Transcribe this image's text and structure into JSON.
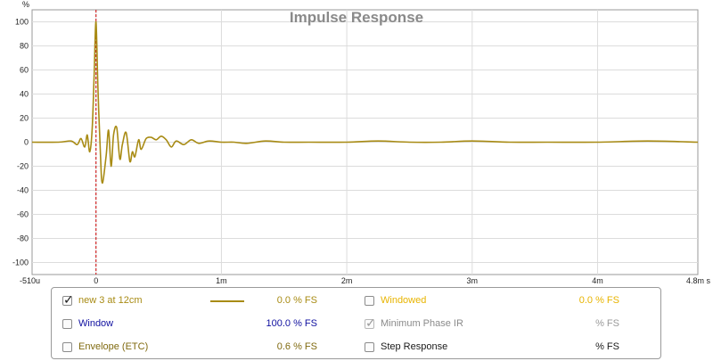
{
  "chart_data": {
    "type": "line",
    "title": "Impulse Response",
    "y_unit": "%",
    "ylim": [
      -110,
      110
    ],
    "y_ticks": [
      100,
      80,
      60,
      40,
      20,
      0,
      -20,
      -40,
      -60,
      -80,
      -100
    ],
    "y_tick_labels": [
      "100",
      "80",
      "60",
      "40",
      "20",
      "0",
      "-20",
      "-40",
      "-60",
      "-80",
      "-100"
    ],
    "x_range_ms": [
      -0.51,
      4.8
    ],
    "x_ticks_ms": [
      -0.51,
      0,
      1,
      2,
      3,
      4,
      4.8
    ],
    "x_tick_labels": [
      "-510u",
      "0",
      "1m",
      "2m",
      "3m",
      "4m",
      "4.8m s"
    ],
    "grid": true,
    "marker_x_ms": 0,
    "marker_color": "#cc0000",
    "series": [
      {
        "name": "new 3 at 12cm",
        "color": "#a88b14",
        "x_ms": [
          -0.51,
          -0.3,
          -0.2,
          -0.15,
          -0.12,
          -0.09,
          -0.07,
          -0.05,
          -0.03,
          -0.015,
          0.0,
          0.015,
          0.035,
          0.05,
          0.08,
          0.1,
          0.12,
          0.14,
          0.165,
          0.19,
          0.21,
          0.24,
          0.27,
          0.29,
          0.31,
          0.34,
          0.36,
          0.4,
          0.44,
          0.48,
          0.52,
          0.56,
          0.6,
          0.64,
          0.7,
          0.76,
          0.82,
          0.9,
          1.0,
          1.1,
          1.2,
          1.35,
          1.5,
          1.7,
          2.0,
          2.25,
          2.5,
          2.75,
          3.0,
          3.3,
          3.6,
          4.0,
          4.4,
          4.8
        ],
        "y": [
          0,
          0,
          1,
          -2,
          3,
          -4,
          6,
          -8,
          12,
          55,
          100,
          45,
          -10,
          -34,
          -12,
          10,
          -20,
          6,
          12,
          -14,
          -2,
          8,
          -16,
          -8,
          -12,
          2,
          -6,
          3,
          4,
          2,
          5,
          2,
          -4,
          1,
          -2,
          2,
          -1,
          1,
          0,
          0,
          -1,
          1,
          0,
          0,
          0,
          1,
          0,
          0,
          1,
          0,
          0,
          0,
          1,
          0
        ]
      }
    ]
  },
  "legend": {
    "rows": [
      {
        "left": {
          "label": "new 3 at 12cm",
          "checked": true,
          "color": "#a88b14",
          "value": "0.0 % FS",
          "value_color": "#a88b14",
          "swatch": true
        },
        "right": {
          "label": "Windowed",
          "checked": false,
          "color": "#e8b400",
          "value": "0.0 % FS",
          "value_color": "#e8b400",
          "disabled": false
        }
      },
      {
        "left": {
          "label": "Window",
          "checked": false,
          "color": "#1010a0",
          "value": "100.0 % FS",
          "value_color": "#1010a0"
        },
        "right": {
          "label": "Minimum Phase IR",
          "checked": true,
          "color": "#8a8a8a",
          "value": "% FS",
          "value_color": "#9a9a9a",
          "disabled": true
        }
      },
      {
        "left": {
          "label": "Envelope (ETC)",
          "checked": false,
          "color": "#806a10",
          "value": "0.6 % FS",
          "value_color": "#806a10"
        },
        "right": {
          "label": "Step Response",
          "checked": false,
          "color": "#1a1a1a",
          "value": "% FS",
          "value_color": "#1a1a1a",
          "disabled": false
        }
      }
    ]
  }
}
